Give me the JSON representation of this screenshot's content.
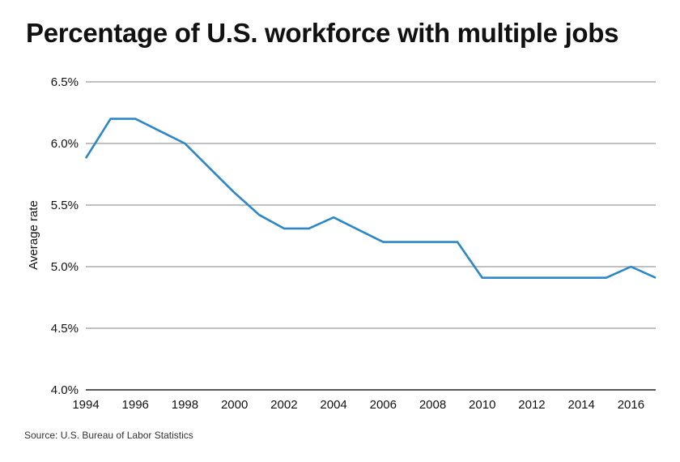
{
  "chart_data": {
    "type": "line",
    "title": "Percentage of U.S. workforce with multiple jobs",
    "xlabel": "",
    "ylabel": "Average rate",
    "source": "Source: U.S. Bureau of Labor Statistics",
    "x": [
      1994,
      1995,
      1996,
      1997,
      1998,
      1999,
      2000,
      2001,
      2002,
      2003,
      2004,
      2005,
      2006,
      2007,
      2008,
      2009,
      2010,
      2011,
      2012,
      2013,
      2014,
      2015,
      2016,
      2017
    ],
    "series": [
      {
        "name": "",
        "color": "#2b87c8",
        "values": [
          5.88,
          6.2,
          6.2,
          6.1,
          6.0,
          5.8,
          5.6,
          5.42,
          5.31,
          5.31,
          5.4,
          5.3,
          5.2,
          5.2,
          5.2,
          5.2,
          4.91,
          4.91,
          4.91,
          4.91,
          4.91,
          4.91,
          5.0,
          4.91
        ]
      }
    ],
    "x_ticks": [
      "1994",
      "1996",
      "1998",
      "2000",
      "2002",
      "2004",
      "2006",
      "2008",
      "2010",
      "2012",
      "2014",
      "2016"
    ],
    "y_ticks": [
      "4.0%",
      "4.5%",
      "5.0%",
      "5.5%",
      "6.0%",
      "6.5%"
    ],
    "ylim": [
      4.0,
      6.5
    ],
    "xlim": [
      1994,
      2017
    ],
    "grid": "horizontal"
  }
}
